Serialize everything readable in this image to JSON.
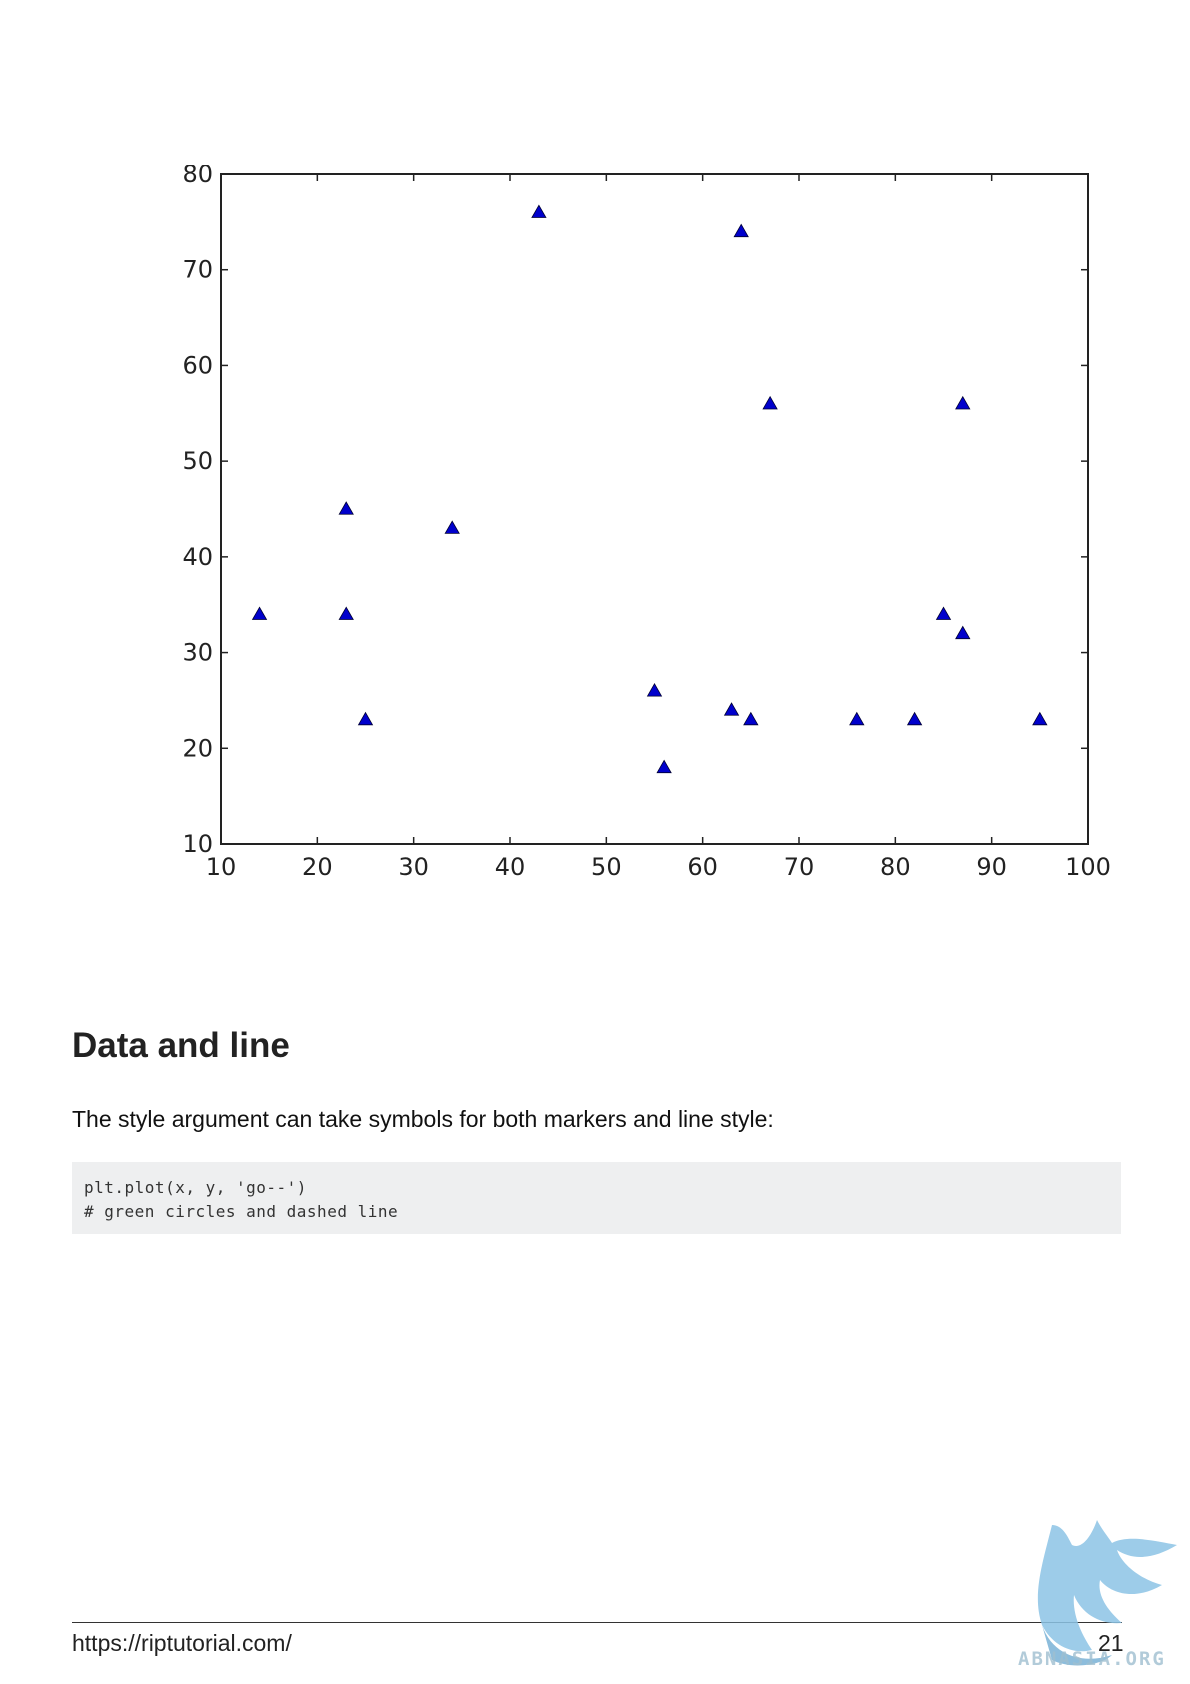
{
  "chart_data": {
    "type": "scatter",
    "title": "",
    "xlabel": "",
    "ylabel": "",
    "xlim": [
      10,
      100
    ],
    "ylim": [
      10,
      80
    ],
    "xticks": [
      10,
      20,
      30,
      40,
      50,
      60,
      70,
      80,
      90,
      100
    ],
    "yticks": [
      10,
      20,
      30,
      40,
      50,
      60,
      70,
      80
    ],
    "grid": false,
    "marker": "triangle",
    "color": "#0000cc",
    "series": [
      {
        "points": [
          {
            "x": 14,
            "y": 34
          },
          {
            "x": 23,
            "y": 45
          },
          {
            "x": 23,
            "y": 34
          },
          {
            "x": 25,
            "y": 23
          },
          {
            "x": 34,
            "y": 43
          },
          {
            "x": 43,
            "y": 76
          },
          {
            "x": 55,
            "y": 26
          },
          {
            "x": 56,
            "y": 18
          },
          {
            "x": 63,
            "y": 24
          },
          {
            "x": 64,
            "y": 74
          },
          {
            "x": 65,
            "y": 23
          },
          {
            "x": 67,
            "y": 56
          },
          {
            "x": 76,
            "y": 23
          },
          {
            "x": 82,
            "y": 23
          },
          {
            "x": 85,
            "y": 34
          },
          {
            "x": 87,
            "y": 56
          },
          {
            "x": 87,
            "y": 32
          },
          {
            "x": 95,
            "y": 23
          }
        ]
      }
    ]
  },
  "section": {
    "heading": "Data and line",
    "intro": "The style argument can take symbols for both markers and line style:"
  },
  "code": {
    "lines": [
      "plt.plot(x, y, 'go--')",
      "# green circles and dashed line"
    ]
  },
  "footer": {
    "url": "https://riptutorial.com/",
    "page_number": "21"
  },
  "watermark": {
    "text": "ABNASIA.ORG",
    "icon": "griffin-logo-icon"
  }
}
